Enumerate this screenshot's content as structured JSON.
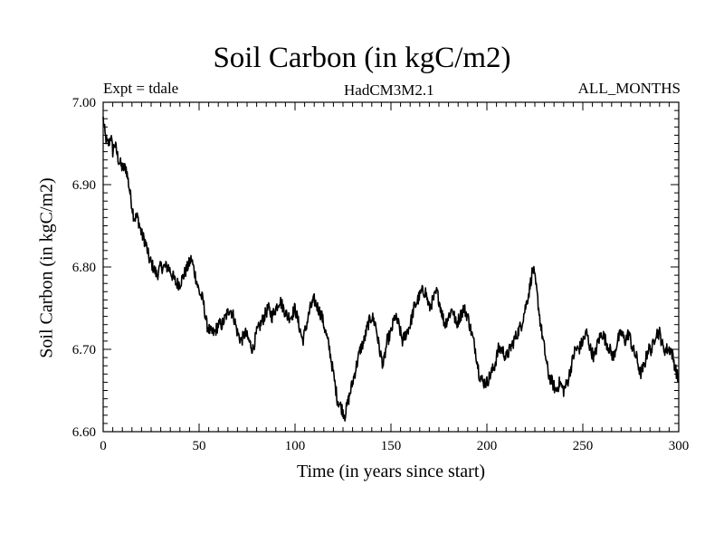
{
  "chart_data": {
    "type": "line",
    "title": "Soil Carbon (in kgC/m2)",
    "subtitle_left": "Expt = tdale",
    "subtitle_center": "HadCM3M2.1",
    "subtitle_right": "ALL_MONTHS",
    "xlabel": "Time (in years since start)",
    "ylabel": "Soil Carbon (in kgC/m2)",
    "xlim": [
      0,
      300
    ],
    "ylim": [
      6.6,
      7.0
    ],
    "xticks": [
      0,
      50,
      100,
      150,
      200,
      250,
      300
    ],
    "xtick_labels": [
      "0",
      "50",
      "100",
      "150",
      "200",
      "250",
      "300"
    ],
    "yticks": [
      6.6,
      6.7,
      6.8,
      6.9,
      7.0
    ],
    "ytick_labels": [
      "6.60",
      "6.70",
      "6.80",
      "6.90",
      "7.00"
    ],
    "grid": false,
    "series": [
      {
        "name": "Soil Carbon",
        "color": "#000000",
        "x": [
          0,
          1,
          2,
          3,
          4,
          5,
          6,
          8,
          10,
          12,
          14,
          16,
          18,
          20,
          22,
          24,
          26,
          28,
          30,
          32,
          34,
          36,
          38,
          40,
          42,
          44,
          46,
          48,
          50,
          52,
          54,
          56,
          58,
          60,
          62,
          64,
          66,
          68,
          70,
          72,
          74,
          76,
          78,
          80,
          82,
          84,
          86,
          88,
          90,
          92,
          94,
          96,
          98,
          100,
          102,
          104,
          106,
          108,
          110,
          112,
          114,
          116,
          118,
          120,
          122,
          124,
          126,
          128,
          130,
          132,
          134,
          136,
          138,
          140,
          142,
          144,
          146,
          148,
          150,
          152,
          154,
          156,
          158,
          160,
          162,
          164,
          166,
          168,
          170,
          172,
          174,
          176,
          178,
          180,
          182,
          184,
          186,
          188,
          190,
          192,
          194,
          196,
          198,
          200,
          202,
          204,
          206,
          208,
          210,
          212,
          214,
          216,
          218,
          220,
          222,
          224,
          226,
          228,
          230,
          232,
          234,
          236,
          238,
          240,
          242,
          244,
          246,
          248,
          250,
          252,
          254,
          256,
          258,
          260,
          262,
          264,
          266,
          268,
          270,
          272,
          274,
          276,
          278,
          280,
          282,
          284,
          286,
          288,
          290,
          292,
          294,
          296,
          298,
          300
        ],
        "y": [
          6.98,
          6.96,
          6.95,
          6.95,
          6.96,
          6.94,
          6.95,
          6.93,
          6.92,
          6.92,
          6.89,
          6.86,
          6.86,
          6.84,
          6.83,
          6.81,
          6.8,
          6.79,
          6.8,
          6.8,
          6.8,
          6.79,
          6.78,
          6.78,
          6.79,
          6.8,
          6.81,
          6.79,
          6.77,
          6.76,
          6.73,
          6.72,
          6.72,
          6.73,
          6.73,
          6.74,
          6.75,
          6.74,
          6.72,
          6.71,
          6.72,
          6.71,
          6.7,
          6.72,
          6.73,
          6.74,
          6.75,
          6.74,
          6.75,
          6.76,
          6.75,
          6.74,
          6.74,
          6.75,
          6.73,
          6.71,
          6.73,
          6.75,
          6.76,
          6.75,
          6.74,
          6.72,
          6.7,
          6.67,
          6.64,
          6.63,
          6.62,
          6.64,
          6.66,
          6.68,
          6.7,
          6.71,
          6.73,
          6.74,
          6.73,
          6.7,
          6.68,
          6.71,
          6.72,
          6.74,
          6.73,
          6.71,
          6.72,
          6.73,
          6.75,
          6.76,
          6.77,
          6.77,
          6.75,
          6.76,
          6.77,
          6.75,
          6.73,
          6.74,
          6.75,
          6.73,
          6.74,
          6.75,
          6.74,
          6.72,
          6.7,
          6.67,
          6.66,
          6.66,
          6.67,
          6.68,
          6.7,
          6.7,
          6.69,
          6.7,
          6.71,
          6.72,
          6.73,
          6.75,
          6.77,
          6.8,
          6.77,
          6.73,
          6.7,
          6.67,
          6.66,
          6.65,
          6.66,
          6.65,
          6.66,
          6.68,
          6.7,
          6.7,
          6.71,
          6.72,
          6.7,
          6.69,
          6.71,
          6.72,
          6.71,
          6.7,
          6.69,
          6.71,
          6.72,
          6.71,
          6.72,
          6.7,
          6.69,
          6.67,
          6.68,
          6.7,
          6.7,
          6.72,
          6.72,
          6.7,
          6.7,
          6.7,
          6.68,
          6.66
        ]
      }
    ]
  }
}
